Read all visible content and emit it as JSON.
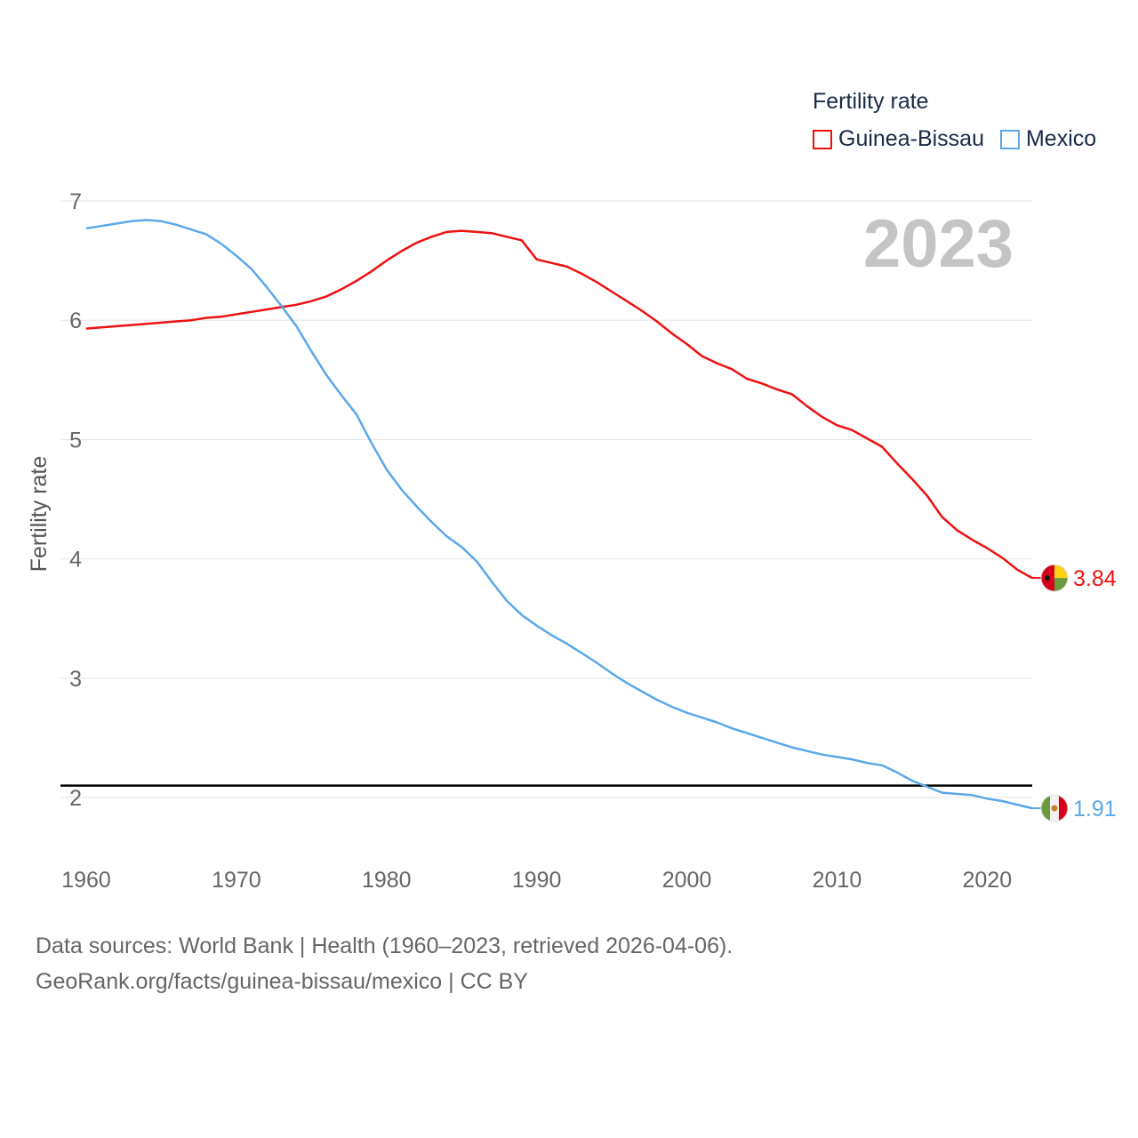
{
  "legend": {
    "title": "Fertility rate",
    "items": [
      {
        "label": "Guinea-Bissau",
        "color": "#ee1111"
      },
      {
        "label": "Mexico",
        "color": "#5ba8ea"
      }
    ]
  },
  "footer": {
    "line1": "Data sources: World Bank | Health (1960–2023, retrieved 2026-04-06).",
    "line2": "GeoRank.org/facts/guinea-bissau/mexico | CC BY"
  },
  "chart_data": {
    "type": "line",
    "title": "",
    "year_label": "2023",
    "xlabel": "",
    "ylabel": "Fertility rate",
    "xlim": [
      1960,
      2023
    ],
    "ylim": [
      1.5,
      7.2
    ],
    "x_ticks": [
      1960,
      1970,
      1980,
      1990,
      2000,
      2010,
      2020
    ],
    "y_ticks": [
      2,
      3,
      4,
      5,
      6,
      7
    ],
    "reference_line": {
      "y": 2.1,
      "color": "#000000"
    },
    "x": [
      1960,
      1961,
      1962,
      1963,
      1964,
      1965,
      1966,
      1967,
      1968,
      1969,
      1970,
      1971,
      1972,
      1973,
      1974,
      1975,
      1976,
      1977,
      1978,
      1979,
      1980,
      1981,
      1982,
      1983,
      1984,
      1985,
      1986,
      1987,
      1988,
      1989,
      1990,
      1991,
      1992,
      1993,
      1994,
      1995,
      1996,
      1997,
      1998,
      1999,
      2000,
      2001,
      2002,
      2003,
      2004,
      2005,
      2006,
      2007,
      2008,
      2009,
      2010,
      2011,
      2012,
      2013,
      2014,
      2015,
      2016,
      2017,
      2018,
      2019,
      2020,
      2021,
      2022,
      2023
    ],
    "series": [
      {
        "name": "Guinea-Bissau",
        "color": "#ee1111",
        "end_label": "3.84",
        "values": [
          5.93,
          5.94,
          5.95,
          5.96,
          5.97,
          5.98,
          5.99,
          6.0,
          6.02,
          6.03,
          6.05,
          6.07,
          6.09,
          6.11,
          6.13,
          6.16,
          6.2,
          6.26,
          6.33,
          6.41,
          6.5,
          6.58,
          6.65,
          6.7,
          6.74,
          6.75,
          6.74,
          6.73,
          6.7,
          6.67,
          6.51,
          6.48,
          6.45,
          6.39,
          6.32,
          6.24,
          6.16,
          6.08,
          5.99,
          5.89,
          5.8,
          5.7,
          5.64,
          5.59,
          5.51,
          5.47,
          5.42,
          5.38,
          5.28,
          5.19,
          5.12,
          5.08,
          5.01,
          4.94,
          4.8,
          4.67,
          4.53,
          4.35,
          4.24,
          4.16,
          4.09,
          4.01,
          3.91,
          3.84
        ]
      },
      {
        "name": "Mexico",
        "color": "#5ba8ea",
        "end_label": "1.91",
        "values": [
          6.77,
          6.79,
          6.81,
          6.83,
          6.84,
          6.83,
          6.8,
          6.76,
          6.72,
          6.64,
          6.54,
          6.43,
          6.28,
          6.12,
          5.95,
          5.74,
          5.54,
          5.37,
          5.21,
          4.97,
          4.75,
          4.58,
          4.44,
          4.31,
          4.19,
          4.1,
          3.98,
          3.81,
          3.65,
          3.53,
          3.44,
          3.36,
          3.29,
          3.21,
          3.13,
          3.04,
          2.96,
          2.89,
          2.82,
          2.76,
          2.71,
          2.67,
          2.63,
          2.58,
          2.54,
          2.5,
          2.46,
          2.42,
          2.39,
          2.36,
          2.34,
          2.32,
          2.29,
          2.27,
          2.21,
          2.14,
          2.09,
          2.04,
          2.03,
          2.02,
          1.99,
          1.97,
          1.94,
          1.91
        ]
      }
    ]
  }
}
